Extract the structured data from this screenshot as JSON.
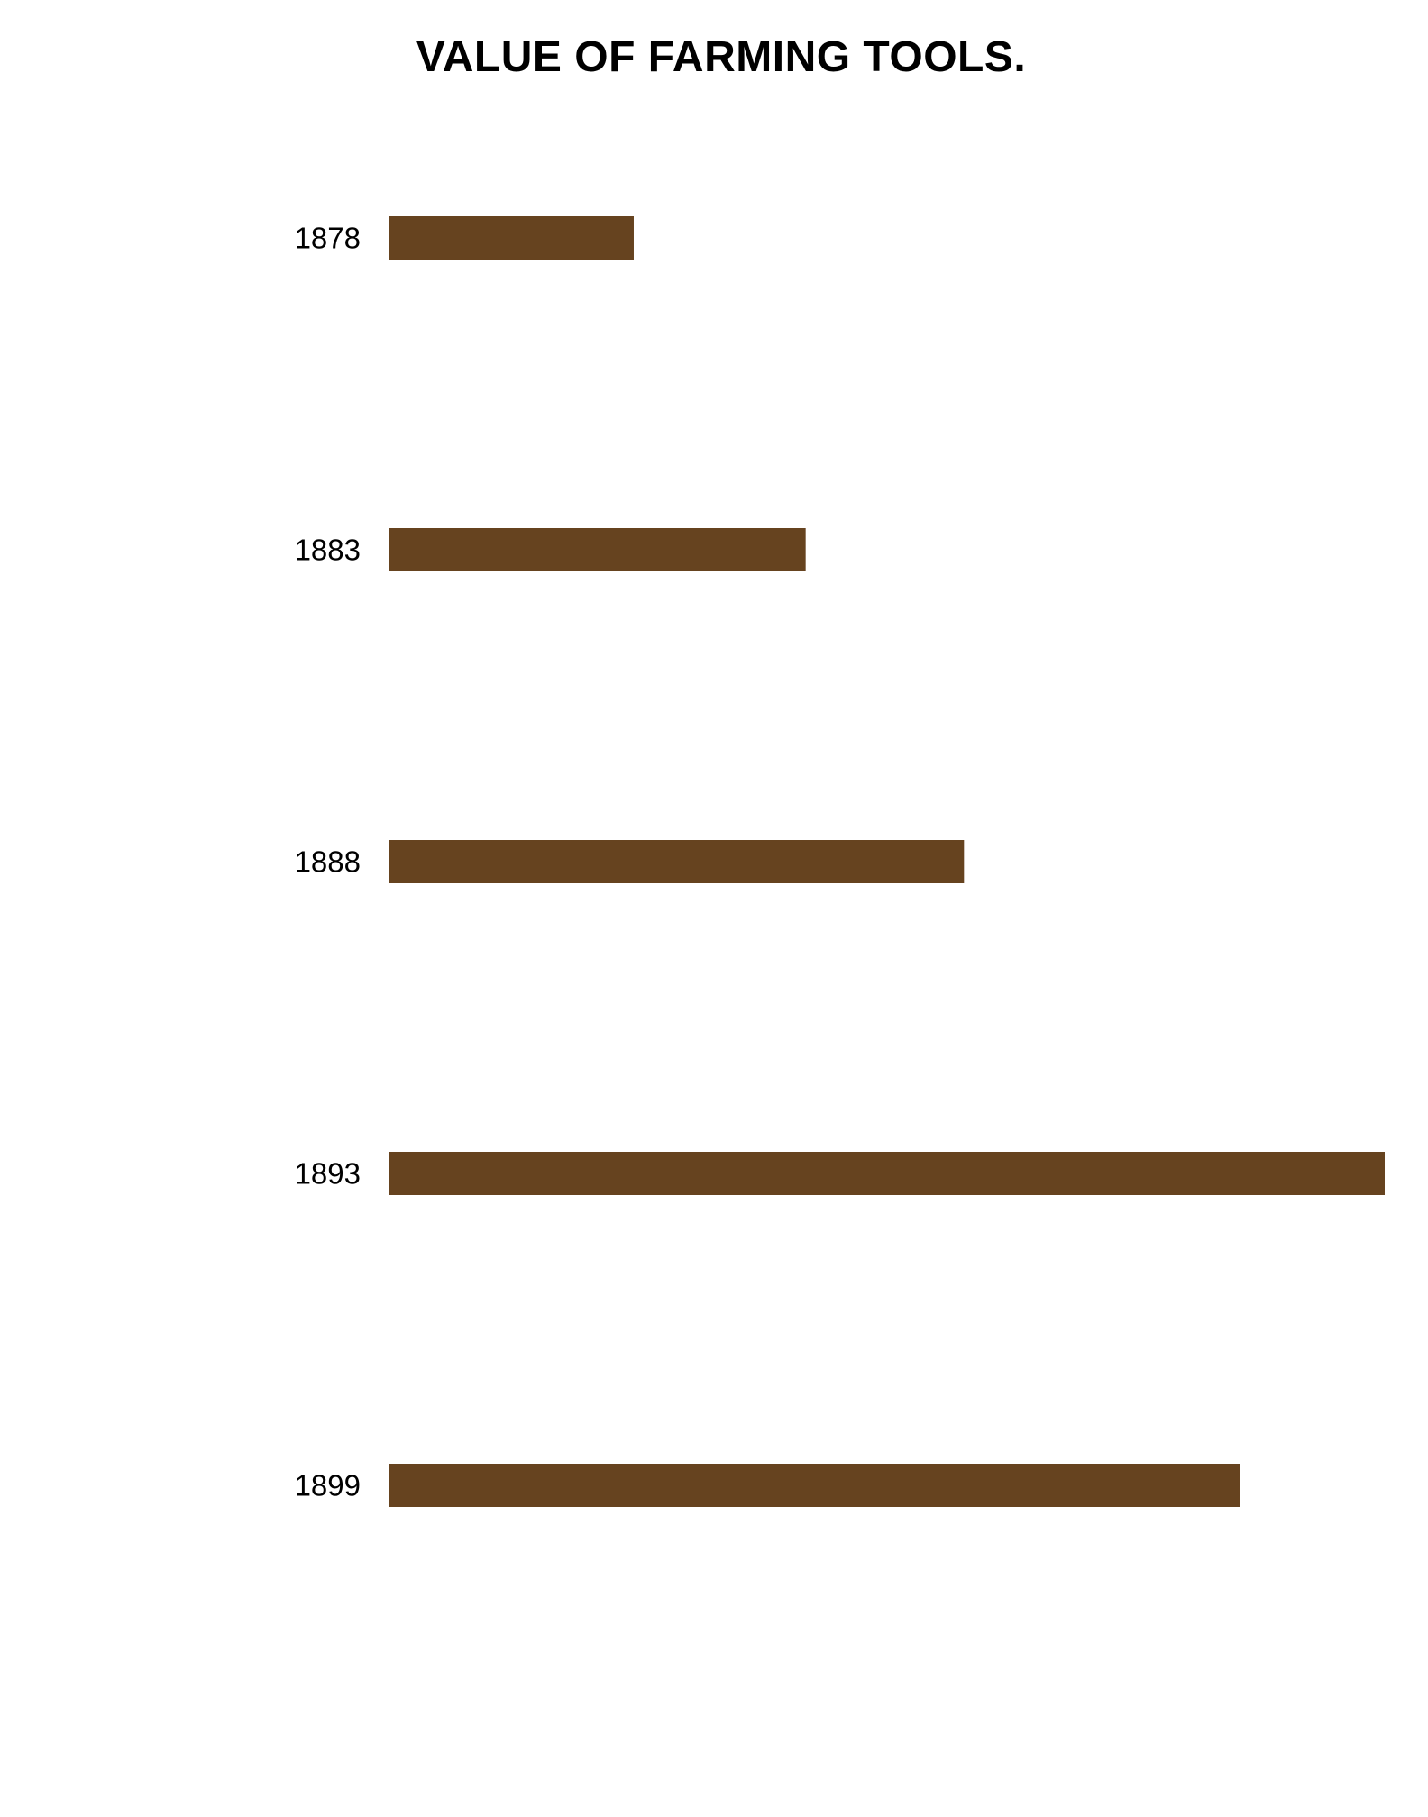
{
  "chart_data": {
    "type": "bar",
    "orientation": "horizontal",
    "title": "VALUE OF FARMING TOOLS.",
    "xlabel": "",
    "ylabel": "",
    "categories": [
      "1878",
      "1883",
      "1888",
      "1893",
      "1899"
    ],
    "values": [
      2.7,
      4.6,
      6.35,
      11.0,
      9.4
    ],
    "xlim": [
      0,
      11.0
    ],
    "grid": false,
    "legend": "none",
    "bar_color": "#66431f"
  }
}
